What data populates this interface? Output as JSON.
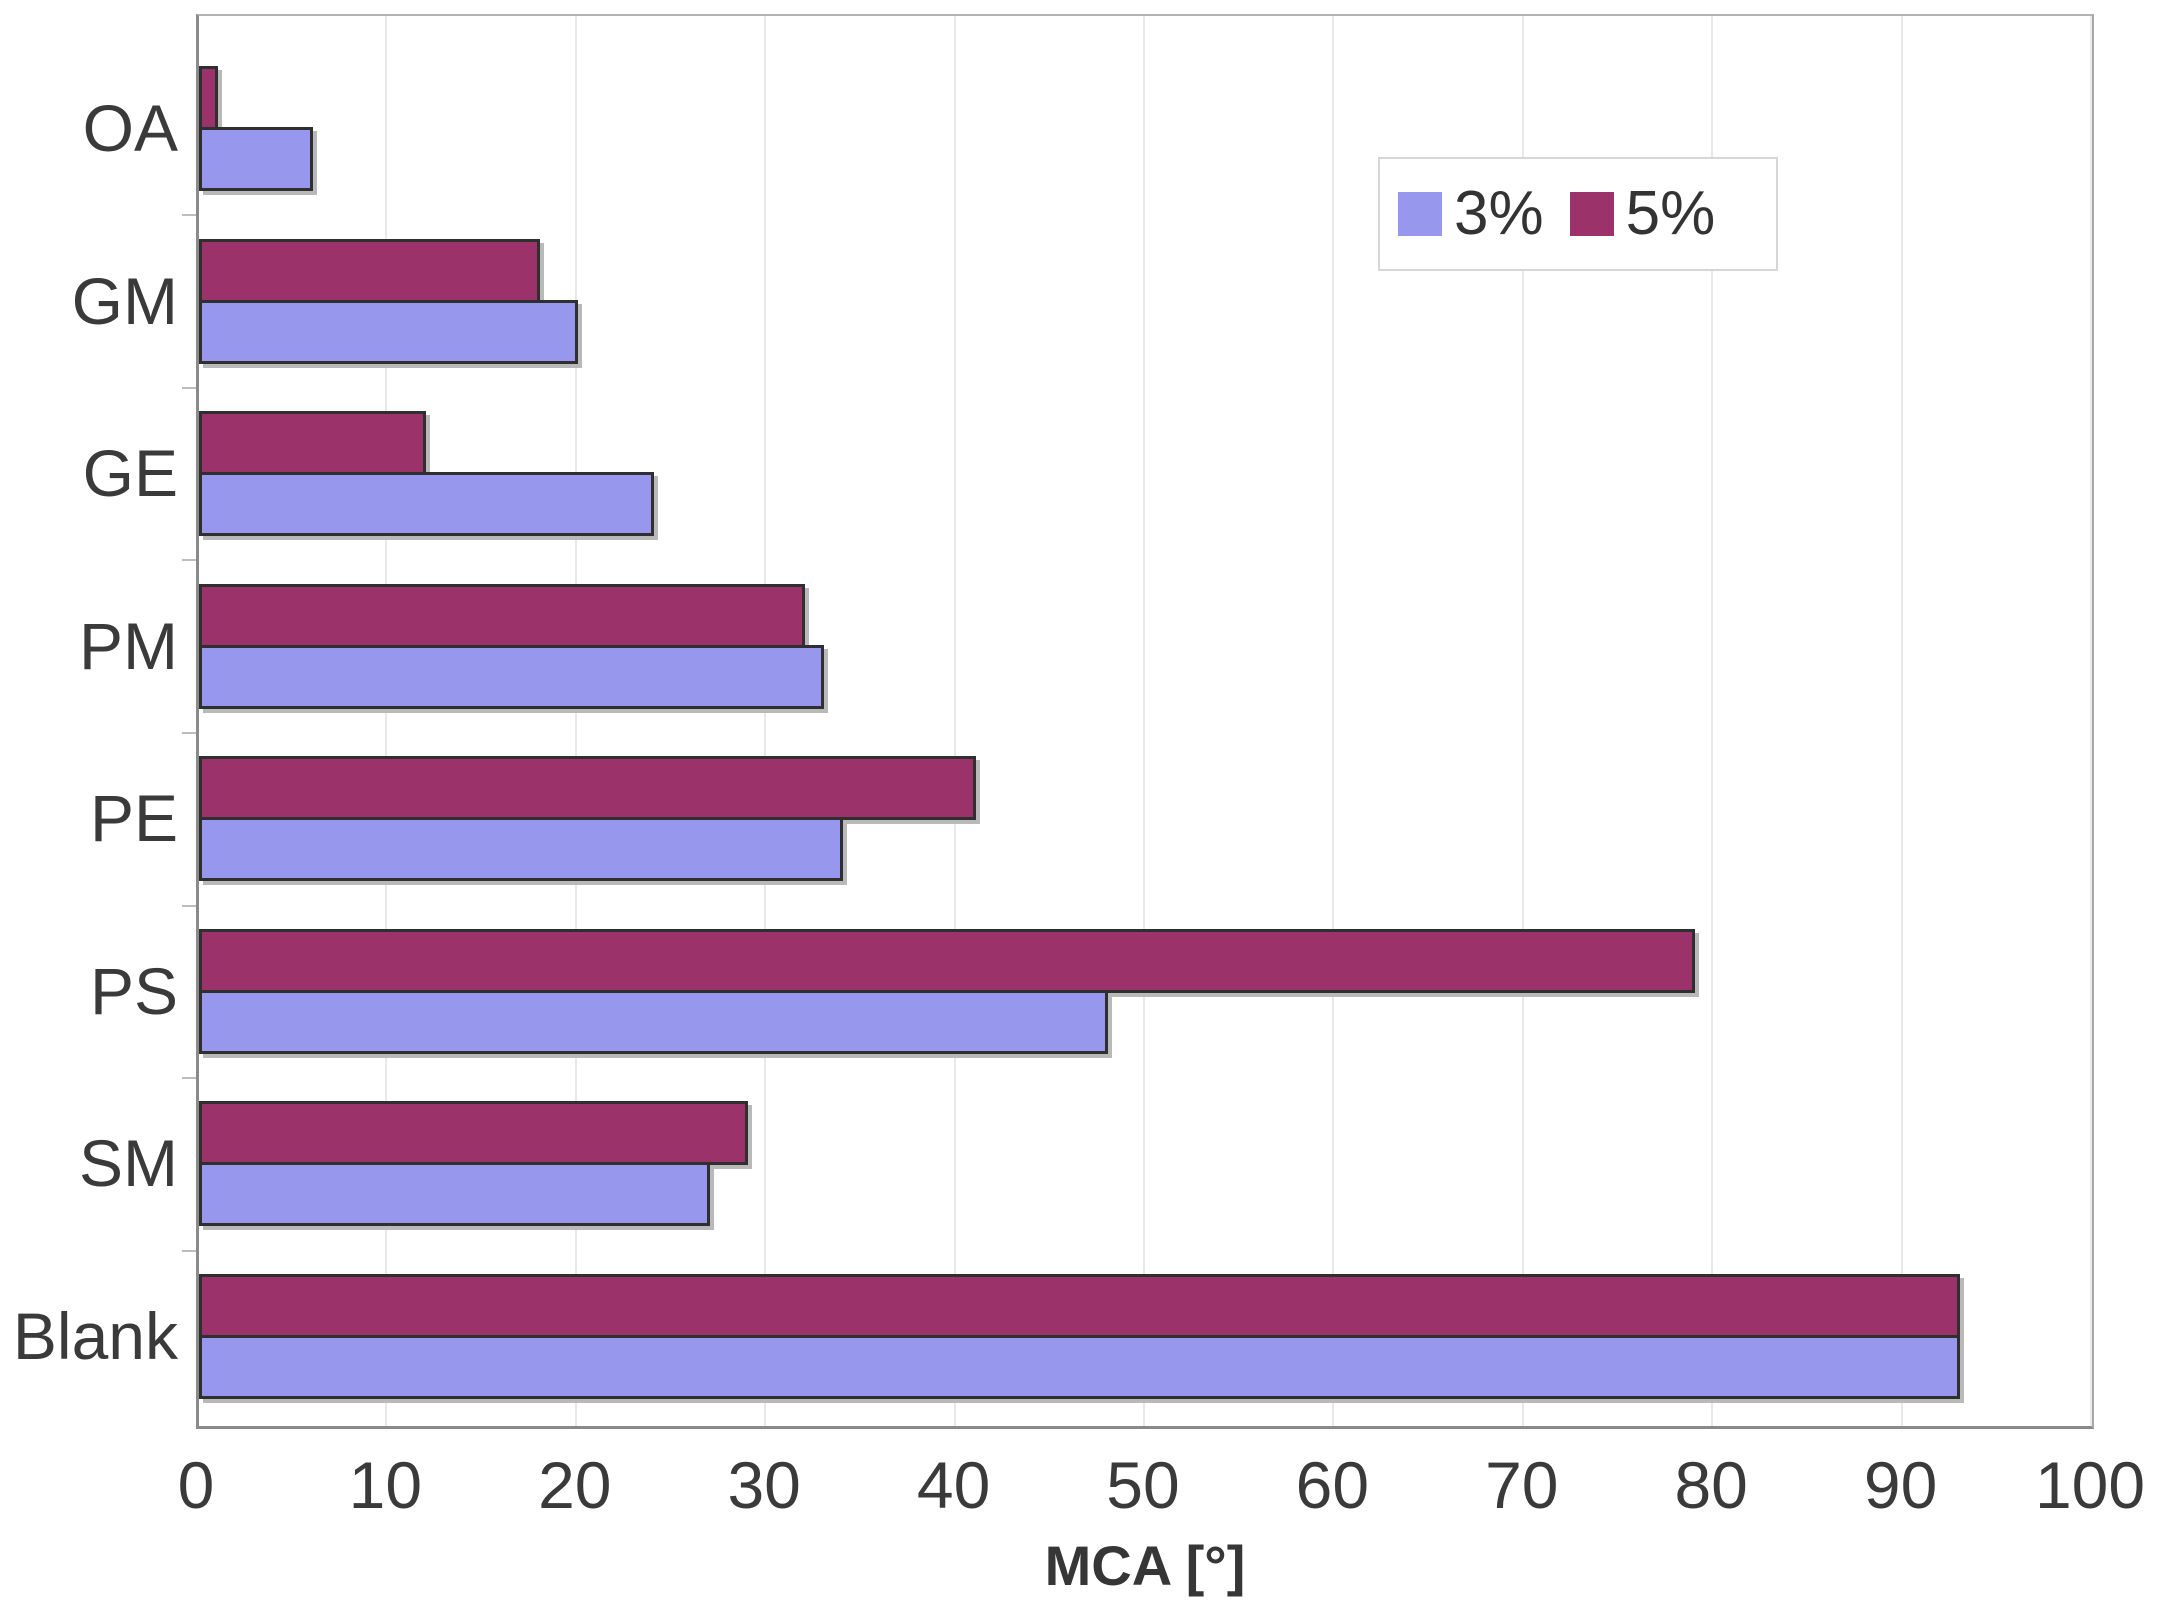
{
  "chart_data": {
    "type": "bar",
    "orientation": "horizontal",
    "title": "",
    "xlabel": "MCA [°]",
    "ylabel": "",
    "xlim": [
      0,
      100
    ],
    "x_ticks": [
      "0",
      "10",
      "20",
      "30",
      "40",
      "50",
      "60",
      "70",
      "80",
      "90",
      "100"
    ],
    "grid": "vertical",
    "legend_position": "top-right-inside",
    "categories": [
      "OA",
      "GM",
      "GE",
      "PM",
      "PE",
      "PS",
      "SM",
      "Blank"
    ],
    "series": [
      {
        "name": "3%",
        "color": "#9797EE",
        "values": [
          6,
          20,
          24,
          33,
          34,
          48,
          27,
          93
        ]
      },
      {
        "name": "5%",
        "color": "#9B336A",
        "values": [
          1,
          18,
          12,
          32,
          41,
          79,
          29,
          93
        ]
      }
    ],
    "bar_order_note": "within each category the 5% bar is drawn above the 3% bar"
  },
  "colors": {
    "bar_border": "#2f2f2f",
    "gridline": "#e9e9e9",
    "axis_line": "#8a8a8a",
    "frame_line": "#b2b2b2",
    "text": "#3a3a3a",
    "legend_border": "#d6d6d6",
    "background": "#ffffff"
  }
}
